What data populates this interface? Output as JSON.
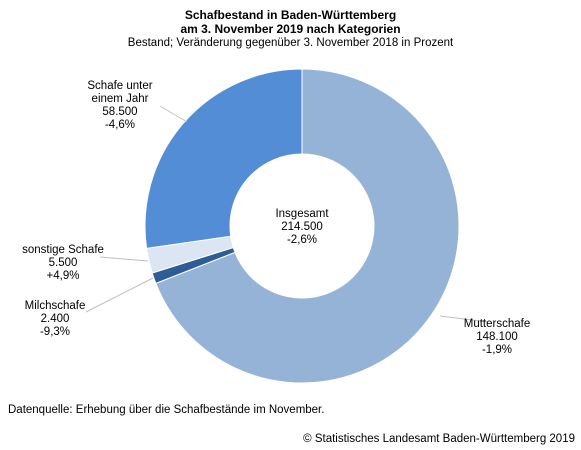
{
  "chart_data": {
    "type": "pie",
    "variant": "donut",
    "title_lines": [
      "Schafbestand in Baden-Württemberg",
      "am 3. November 2019 nach Kategorien"
    ],
    "subtitle": "Bestand; Veränderung gegenüber 3. November 2018 in Prozent",
    "center_label": {
      "lines": [
        "Insgesamt",
        "214.500",
        "-2,6%"
      ]
    },
    "slices": [
      {
        "name": "Mutterschafe",
        "value": 148100,
        "value_label": "148.100",
        "change": "-1,9%",
        "color": "#95b3d7"
      },
      {
        "name": "Milchschafe",
        "value": 2400,
        "value_label": "2.400",
        "change": "-9,3%",
        "color": "#2e5c96"
      },
      {
        "name": "sonstige Schafe",
        "value": 5500,
        "value_label": "5.500",
        "change": "+4,9%",
        "color": "#dce6f2"
      },
      {
        "name": "Schafe unter einem Jahr",
        "label_lines": [
          "Schafe unter",
          "einem Jahr"
        ],
        "value": 58500,
        "value_label": "58.500",
        "change": "-4,6%",
        "color": "#538dd5"
      }
    ],
    "legend": "none"
  },
  "footer": {
    "source": "Datenquelle: Erhebung über die Schafbestände im November.",
    "copyright": "© Statistisches Landesamt Baden-Württemberg 2019"
  }
}
